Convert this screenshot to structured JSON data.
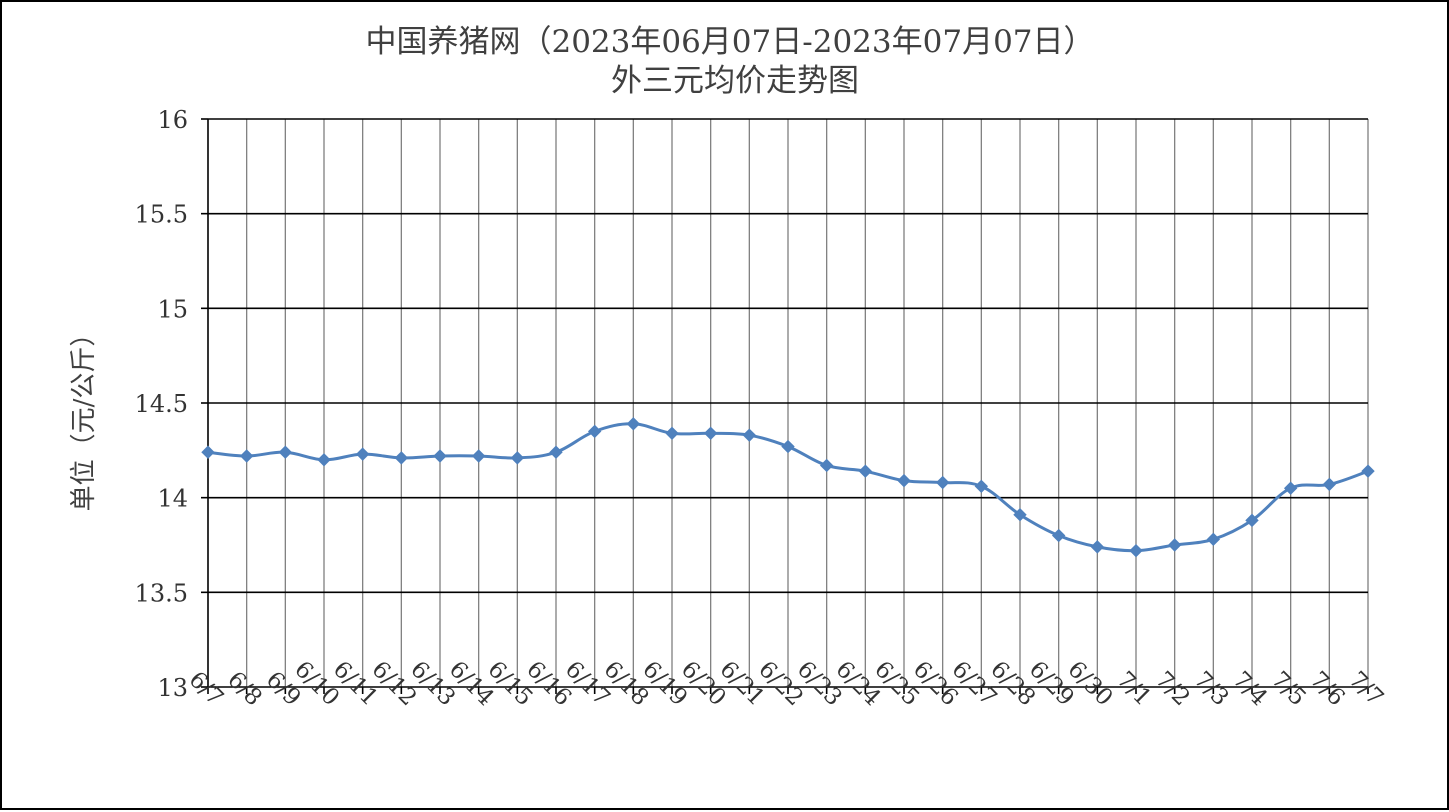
{
  "chart_data": {
    "type": "line",
    "title": "中国养猪网（2023年06月07日-2023年07月07日）",
    "subtitle": "外三元均价走势图",
    "xlabel": "",
    "ylabel": "单位（元/公斤）",
    "ylim": [
      13,
      16
    ],
    "yticks": [
      "13",
      "13.5",
      "14",
      "14.5",
      "15",
      "15.5",
      "16"
    ],
    "yticks_values": [
      13,
      13.5,
      14,
      14.5,
      15,
      15.5,
      16
    ],
    "categories": [
      "6/7",
      "6/8",
      "6/9",
      "6/10",
      "6/11",
      "6/12",
      "6/13",
      "6/14",
      "6/15",
      "6/16",
      "6/17",
      "6/18",
      "6/19",
      "6/20",
      "6/21",
      "6/22",
      "6/23",
      "6/24",
      "6/25",
      "6/26",
      "6/27",
      "6/28",
      "6/29",
      "6/30",
      "7/1",
      "7/2",
      "7/3",
      "7/4",
      "7/5",
      "7/6",
      "7/7"
    ],
    "series": [
      {
        "name": "",
        "color": "#4f81bd",
        "values": [
          14.24,
          14.22,
          14.24,
          14.2,
          14.23,
          14.21,
          14.22,
          14.22,
          14.21,
          14.24,
          14.35,
          14.39,
          14.34,
          14.34,
          14.33,
          14.27,
          14.17,
          14.14,
          14.09,
          14.08,
          14.06,
          13.91,
          13.8,
          13.74,
          13.72,
          13.75,
          13.78,
          13.88,
          14.05,
          14.07,
          14.14
        ]
      }
    ],
    "grid": {
      "horizontal": true,
      "vertical": true,
      "horizontal_color": "#000000",
      "vertical_color": "#808080"
    },
    "legend": "none"
  }
}
